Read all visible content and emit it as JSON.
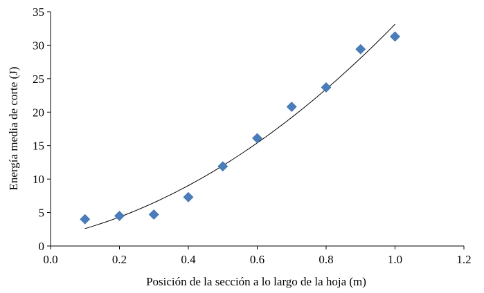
{
  "chart_data": {
    "type": "scatter",
    "title": "",
    "xlabel": "Posición de la sección a lo largo de la hoja (m)",
    "ylabel": "Energía media de corte (J)",
    "xlim": [
      0.0,
      1.2
    ],
    "ylim": [
      0,
      35
    ],
    "x_ticks": [
      "0.0",
      "0.2",
      "0.4",
      "0.6",
      "0.8",
      "1.0",
      "1.2"
    ],
    "y_ticks": [
      "0",
      "5",
      "10",
      "15",
      "20",
      "25",
      "30",
      "35"
    ],
    "grid": false,
    "legend": "none",
    "series": [
      {
        "marker": "diamond",
        "color": "#4a7ebb",
        "x": [
          0.1,
          0.2,
          0.3,
          0.4,
          0.5,
          0.6,
          0.7,
          0.8,
          0.9,
          1.0
        ],
        "y": [
          4.0,
          4.5,
          4.7,
          7.3,
          11.9,
          16.1,
          20.8,
          23.7,
          29.4,
          31.3
        ]
      }
    ],
    "trendline": {
      "type": "polynomial",
      "color": "#000000",
      "x_range": [
        0.1,
        1.0
      ],
      "y_at_ends": [
        2.6,
        33.1
      ]
    }
  }
}
